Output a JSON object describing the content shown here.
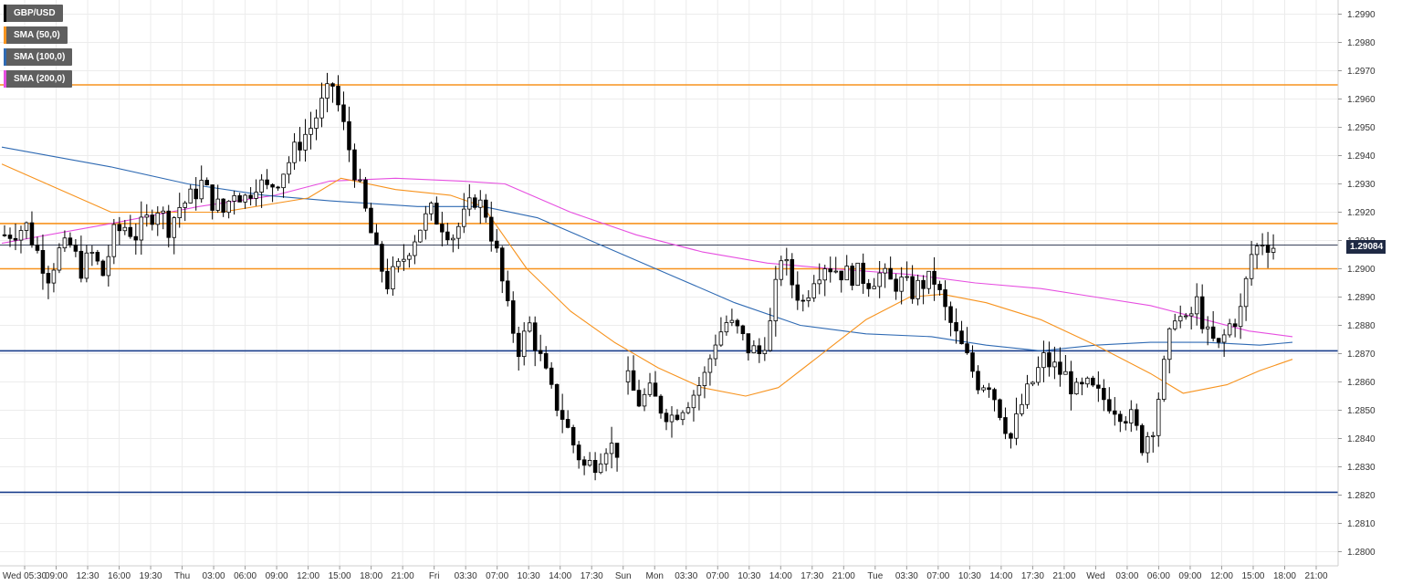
{
  "legend": [
    {
      "label": "GBP/USD",
      "color": "#000000"
    },
    {
      "label": "SMA (50,0)",
      "color": "#f7931e"
    },
    {
      "label": "SMA (100,0)",
      "color": "#2f6ab3"
    },
    {
      "label": "SMA (200,0)",
      "color": "#e64ee0"
    }
  ],
  "last_price": "1.29084",
  "colors": {
    "orange_level": "#f7931e",
    "blue_level": "#1a3e8c",
    "sma50": "#f7931e",
    "sma100": "#2f6ab3",
    "sma200": "#e64ee0",
    "grid": "#e6e6e6"
  },
  "chart_data": {
    "type": "candlestick",
    "symbol": "GBP/USD",
    "ylim": [
      1.2795,
      1.2995
    ],
    "y_ticks": [
      "1.2990",
      "1.2980",
      "1.2970",
      "1.2960",
      "1.2950",
      "1.2940",
      "1.2930",
      "1.2920",
      "1.2910",
      "1.2900",
      "1.2890",
      "1.2880",
      "1.2870",
      "1.2860",
      "1.2850",
      "1.2840",
      "1.2830",
      "1.2820",
      "1.2810",
      "1.2800"
    ],
    "x_ticks": [
      "Wed 05:30",
      "09:00",
      "12:30",
      "16:00",
      "19:30",
      "Thu",
      "03:00",
      "06:00",
      "09:00",
      "12:00",
      "15:00",
      "18:00",
      "21:00",
      "Fri",
      "03:30",
      "07:00",
      "10:30",
      "14:00",
      "17:30",
      "Sun",
      "Mon",
      "03:30",
      "07:00",
      "10:30",
      "14:00",
      "17:30",
      "21:00",
      "Tue",
      "03:30",
      "07:00",
      "10:30",
      "14:00",
      "17:30",
      "21:00",
      "Wed",
      "03:00",
      "06:00",
      "09:00",
      "12:00",
      "15:00",
      "18:00",
      "21:00"
    ],
    "horizontal_levels": [
      {
        "value": 1.2965,
        "color": "orange"
      },
      {
        "value": 1.2916,
        "color": "orange"
      },
      {
        "value": 1.29,
        "color": "orange"
      },
      {
        "value": 1.2871,
        "color": "blue"
      },
      {
        "value": 1.2821,
        "color": "blue"
      },
      {
        "value": 1.29084,
        "color": "last-price"
      }
    ],
    "close_path": [
      [
        0,
        1.2912
      ],
      [
        4,
        1.2915
      ],
      [
        6,
        1.2906
      ],
      [
        8,
        1.2898
      ],
      [
        10,
        1.2906
      ],
      [
        12,
        1.2908
      ],
      [
        14,
        1.29
      ],
      [
        16,
        1.2905
      ],
      [
        18,
        1.2898
      ],
      [
        20,
        1.2912
      ],
      [
        22,
        1.2915
      ],
      [
        24,
        1.2912
      ],
      [
        26,
        1.2917
      ],
      [
        28,
        1.2922
      ],
      [
        30,
        1.2915
      ],
      [
        32,
        1.2922
      ],
      [
        34,
        1.2925
      ],
      [
        36,
        1.293
      ],
      [
        38,
        1.2924
      ],
      [
        40,
        1.292
      ],
      [
        42,
        1.2928
      ],
      [
        44,
        1.2925
      ],
      [
        46,
        1.2931
      ],
      [
        48,
        1.2928
      ],
      [
        50,
        1.2932
      ],
      [
        52,
        1.2938
      ],
      [
        54,
        1.2945
      ],
      [
        56,
        1.295
      ],
      [
        58,
        1.2958
      ],
      [
        60,
        1.2965
      ],
      [
        62,
        1.295
      ],
      [
        64,
        1.2935
      ],
      [
        66,
        1.292
      ],
      [
        68,
        1.2905
      ],
      [
        70,
        1.2895
      ],
      [
        72,
        1.29
      ],
      [
        74,
        1.2908
      ],
      [
        76,
        1.2915
      ],
      [
        78,
        1.292
      ],
      [
        80,
        1.2916
      ],
      [
        82,
        1.2912
      ],
      [
        84,
        1.2918
      ],
      [
        86,
        1.2925
      ],
      [
        88,
        1.292
      ],
      [
        90,
        1.2905
      ],
      [
        92,
        1.2885
      ],
      [
        94,
        1.2872
      ],
      [
        96,
        1.288
      ],
      [
        98,
        1.2868
      ],
      [
        100,
        1.2856
      ],
      [
        102,
        1.2848
      ],
      [
        104,
        1.2838
      ],
      [
        106,
        1.283
      ],
      [
        108,
        1.2832
      ],
      [
        110,
        1.2838
      ],
      [
        112,
        1.2836
      ],
      [
        114,
        1.286
      ],
      [
        116,
        1.2853
      ],
      [
        118,
        1.2856
      ],
      [
        120,
        1.2851
      ],
      [
        122,
        1.2848
      ],
      [
        124,
        1.2852
      ],
      [
        126,
        1.2856
      ],
      [
        128,
        1.2862
      ],
      [
        130,
        1.2875
      ],
      [
        132,
        1.2881
      ],
      [
        134,
        1.2878
      ],
      [
        136,
        1.2872
      ],
      [
        138,
        1.287
      ],
      [
        140,
        1.288
      ],
      [
        142,
        1.2905
      ],
      [
        144,
        1.2895
      ],
      [
        146,
        1.2888
      ],
      [
        148,
        1.2898
      ],
      [
        150,
        1.2902
      ],
      [
        152,
        1.29
      ],
      [
        154,
        1.2898
      ],
      [
        156,
        1.2898
      ],
      [
        158,
        1.2896
      ],
      [
        160,
        1.2898
      ],
      [
        162,
        1.2895
      ],
      [
        164,
        1.2895
      ],
      [
        166,
        1.2892
      ],
      [
        168,
        1.2895
      ],
      [
        170,
        1.2896
      ],
      [
        172,
        1.2885
      ],
      [
        174,
        1.2876
      ],
      [
        176,
        1.2868
      ],
      [
        178,
        1.286
      ],
      [
        180,
        1.286
      ],
      [
        182,
        1.285
      ],
      [
        184,
        1.284
      ],
      [
        186,
        1.2852
      ],
      [
        188,
        1.286
      ],
      [
        190,
        1.2868
      ],
      [
        192,
        1.2865
      ],
      [
        194,
        1.2862
      ],
      [
        196,
        1.2856
      ],
      [
        198,
        1.2858
      ],
      [
        200,
        1.2855
      ],
      [
        202,
        1.2853
      ],
      [
        204,
        1.285
      ],
      [
        206,
        1.2847
      ],
      [
        208,
        1.2838
      ],
      [
        210,
        1.2845
      ],
      [
        212,
        1.2865
      ],
      [
        214,
        1.2885
      ],
      [
        216,
        1.288
      ],
      [
        218,
        1.2888
      ],
      [
        220,
        1.2876
      ],
      [
        222,
        1.2872
      ],
      [
        224,
        1.288
      ],
      [
        226,
        1.2885
      ],
      [
        228,
        1.2905
      ],
      [
        230,
        1.291
      ],
      [
        232,
        1.2908
      ]
    ],
    "sma50": [
      [
        0,
        1.2937
      ],
      [
        20,
        1.292
      ],
      [
        40,
        1.292
      ],
      [
        56,
        1.2925
      ],
      [
        62,
        1.2932
      ],
      [
        72,
        1.2928
      ],
      [
        82,
        1.2926
      ],
      [
        88,
        1.2922
      ],
      [
        96,
        1.29
      ],
      [
        104,
        1.2885
      ],
      [
        112,
        1.2874
      ],
      [
        120,
        1.2865
      ],
      [
        128,
        1.2858
      ],
      [
        136,
        1.2855
      ],
      [
        142,
        1.2858
      ],
      [
        150,
        1.287
      ],
      [
        158,
        1.2882
      ],
      [
        166,
        1.289
      ],
      [
        172,
        1.2891
      ],
      [
        180,
        1.2888
      ],
      [
        190,
        1.2882
      ],
      [
        200,
        1.2873
      ],
      [
        210,
        1.2863
      ],
      [
        216,
        1.2856
      ],
      [
        224,
        1.2859
      ],
      [
        230,
        1.2864
      ],
      [
        236,
        1.2868
      ]
    ],
    "sma100": [
      [
        0,
        1.2943
      ],
      [
        20,
        1.2936
      ],
      [
        34,
        1.293
      ],
      [
        48,
        1.2926
      ],
      [
        60,
        1.2924
      ],
      [
        76,
        1.2922
      ],
      [
        88,
        1.2922
      ],
      [
        98,
        1.2918
      ],
      [
        110,
        1.2908
      ],
      [
        122,
        1.2898
      ],
      [
        134,
        1.2888
      ],
      [
        146,
        1.288
      ],
      [
        158,
        1.2877
      ],
      [
        170,
        1.2876
      ],
      [
        180,
        1.2873
      ],
      [
        190,
        1.2871
      ],
      [
        200,
        1.2873
      ],
      [
        210,
        1.2874
      ],
      [
        220,
        1.2874
      ],
      [
        230,
        1.2873
      ],
      [
        236,
        1.2874
      ]
    ],
    "sma200": [
      [
        0,
        1.2909
      ],
      [
        20,
        1.2916
      ],
      [
        36,
        1.2922
      ],
      [
        50,
        1.2926
      ],
      [
        60,
        1.2931
      ],
      [
        72,
        1.2932
      ],
      [
        84,
        1.2931
      ],
      [
        92,
        1.293
      ],
      [
        104,
        1.292
      ],
      [
        116,
        1.2912
      ],
      [
        128,
        1.2906
      ],
      [
        140,
        1.2902
      ],
      [
        152,
        1.29
      ],
      [
        166,
        1.2898
      ],
      [
        178,
        1.2895
      ],
      [
        190,
        1.2893
      ],
      [
        200,
        1.289
      ],
      [
        210,
        1.2887
      ],
      [
        220,
        1.2882
      ],
      [
        228,
        1.2878
      ],
      [
        236,
        1.2876
      ]
    ]
  }
}
